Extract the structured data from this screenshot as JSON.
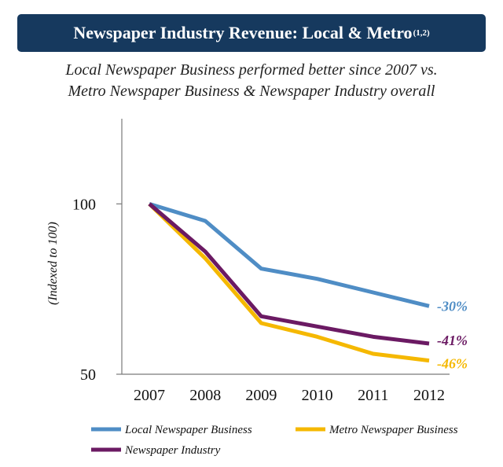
{
  "header": {
    "title": "Newspaper Industry Revenue: Local & Metro",
    "footnote": "(1,2)"
  },
  "subtitle": {
    "line1": "Local Newspaper Business performed better since 2007 vs.",
    "line2": "Metro Newspaper Business & Newspaper Industry overall"
  },
  "chart_data": {
    "type": "line",
    "title": "Newspaper Industry Revenue: Local & Metro",
    "xlabel": "",
    "ylabel": "(Indexed to 100)",
    "categories": [
      "2007",
      "2008",
      "2009",
      "2010",
      "2011",
      "2012"
    ],
    "ylim": [
      50,
      125
    ],
    "yticks": [
      {
        "value": 50,
        "label": "50"
      },
      {
        "value": 100,
        "label": "100"
      }
    ],
    "grid": false,
    "legend_position": "bottom",
    "series": [
      {
        "name": "Local Newspaper Business",
        "values": [
          100,
          95,
          81,
          78,
          74,
          70
        ],
        "color": "#4f8dc5",
        "end_label": "-30%"
      },
      {
        "name": "Newspaper Industry",
        "values": [
          100,
          86,
          67,
          64,
          61,
          59
        ],
        "color": "#6b1a63",
        "end_label": "-41%"
      },
      {
        "name": "Metro Newspaper Business",
        "values": [
          100,
          84,
          65,
          61,
          56,
          54
        ],
        "color": "#f5b800",
        "end_label": "-46%"
      }
    ]
  },
  "legend": {
    "items": [
      {
        "label": "Local Newspaper Business",
        "color": "#4f8dc5"
      },
      {
        "label": "Metro Newspaper Business",
        "color": "#f5b800"
      },
      {
        "label": "Newspaper Industry",
        "color": "#6b1a63"
      }
    ]
  }
}
